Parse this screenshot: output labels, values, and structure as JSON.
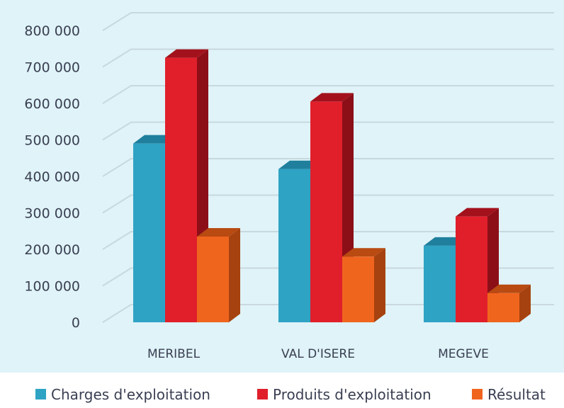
{
  "chart_data": {
    "type": "bar",
    "title": "",
    "xlabel": "",
    "ylabel": "",
    "categories": [
      "MERIBEL",
      "VAL D'ISERE",
      "MEGEVE"
    ],
    "series": [
      {
        "name": "Charges d'exploitation",
        "color": "#2ea3c4",
        "top_color": "#1f7f9c",
        "side_color": "#1d6f88",
        "values": [
          490000,
          420000,
          210000
        ]
      },
      {
        "name": "Produits d'exploitation",
        "color": "#e01f2b",
        "top_color": "#a3121c",
        "side_color": "#8c0f18",
        "values": [
          725000,
          605000,
          290000
        ]
      },
      {
        "name": "Résultat",
        "color": "#f0651e",
        "top_color": "#b84a12",
        "side_color": "#a6420f",
        "values": [
          235000,
          180000,
          80000
        ]
      }
    ],
    "ylim": [
      0,
      800000
    ],
    "yticks": [
      0,
      100000,
      200000,
      300000,
      400000,
      500000,
      600000,
      700000,
      800000
    ],
    "ytick_labels": [
      "0",
      "100 000",
      "200 000",
      "300 000",
      "400 000",
      "500 000",
      "600 000",
      "700 000",
      "800 000"
    ],
    "grid": true,
    "legend_position": "bottom",
    "background_color": "#dff3f8",
    "grid_color": "#c8d9de"
  }
}
